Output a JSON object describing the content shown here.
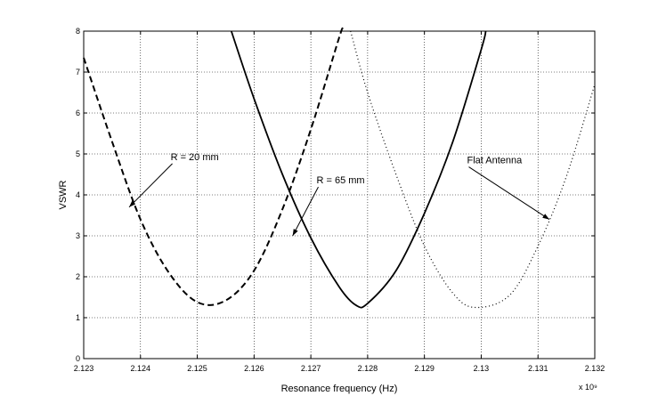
{
  "chart_data": {
    "type": "line",
    "title": "",
    "xlabel": "Resonance frequency (Hz)",
    "ylabel": "VSWR",
    "x_scale_label": "x 10⁹",
    "xlim": [
      2.123,
      2.132
    ],
    "ylim": [
      0,
      8
    ],
    "x_ticks": [
      2.123,
      2.124,
      2.125,
      2.126,
      2.127,
      2.128,
      2.129,
      2.13,
      2.131,
      2.132
    ],
    "x_tick_labels": [
      "2.123",
      "2.124",
      "2.125",
      "2.126",
      "2.127",
      "2.128",
      "2.129",
      "2.13",
      "2.131",
      "2.132"
    ],
    "y_ticks": [
      0,
      1,
      2,
      3,
      4,
      5,
      6,
      7,
      8
    ],
    "y_tick_labels": [
      "0",
      "1",
      "2",
      "3",
      "4",
      "5",
      "6",
      "7",
      "8"
    ],
    "grid": true,
    "series": [
      {
        "name": "R = 20 mm",
        "style": "dashed",
        "color": "#000000",
        "points": [
          [
            2.123,
            7.35
          ],
          [
            2.1235,
            5.3
          ],
          [
            2.124,
            3.4
          ],
          [
            2.1245,
            2.1
          ],
          [
            2.125,
            1.38
          ],
          [
            2.1255,
            1.42
          ],
          [
            2.126,
            2.15
          ],
          [
            2.1265,
            3.65
          ],
          [
            2.127,
            5.6
          ],
          [
            2.1275,
            7.85
          ],
          [
            2.12755,
            8.0
          ]
        ]
      },
      {
        "name": "R = 65 mm",
        "style": "solid",
        "color": "#000000",
        "points": [
          [
            2.1256,
            8.0
          ],
          [
            2.126,
            6.35
          ],
          [
            2.1265,
            4.5
          ],
          [
            2.127,
            2.95
          ],
          [
            2.1275,
            1.75
          ],
          [
            2.1278,
            1.3
          ],
          [
            2.128,
            1.35
          ],
          [
            2.1285,
            2.15
          ],
          [
            2.129,
            3.55
          ],
          [
            2.1295,
            5.3
          ],
          [
            2.13,
            7.55
          ],
          [
            2.13008,
            8.0
          ]
        ]
      },
      {
        "name": "Flat Antenna",
        "style": "dotted",
        "color": "#000000",
        "points": [
          [
            2.1277,
            8.0
          ],
          [
            2.128,
            6.5
          ],
          [
            2.1285,
            4.5
          ],
          [
            2.129,
            2.75
          ],
          [
            2.1295,
            1.6
          ],
          [
            2.1299,
            1.25
          ],
          [
            2.1305,
            1.55
          ],
          [
            2.131,
            2.75
          ],
          [
            2.1315,
            4.45
          ],
          [
            2.132,
            6.7
          ]
        ]
      }
    ],
    "annotations": [
      {
        "text": "R = 20 mm",
        "x": 2.12453,
        "y": 4.85,
        "arrow_to": [
          2.1238,
          3.7
        ]
      },
      {
        "text": "R = 65 mm",
        "x": 2.1271,
        "y": 4.28,
        "arrow_to": [
          2.12668,
          3.0
        ]
      },
      {
        "text": "Flat Antenna",
        "x": 2.12975,
        "y": 4.77,
        "arrow_to": [
          2.1312,
          3.4
        ]
      }
    ]
  }
}
